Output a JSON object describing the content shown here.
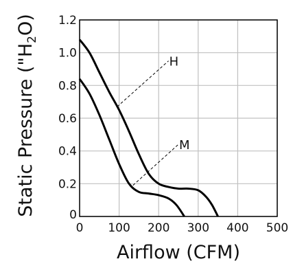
{
  "chart_data": {
    "type": "line",
    "title": "",
    "xlabel": "Airflow (CFM)",
    "ylabel_parts": [
      "Static Pressure (\"H",
      "2",
      "O)"
    ],
    "xlim": [
      0,
      500
    ],
    "ylim": [
      0,
      1.2
    ],
    "x_ticks": [
      0,
      100,
      200,
      300,
      400,
      500
    ],
    "x_tick_labels": [
      "0",
      "100",
      "200",
      "300",
      "400",
      "500"
    ],
    "y_ticks": [
      0,
      0.2,
      0.4,
      0.6,
      0.8,
      1.0,
      1.2
    ],
    "y_tick_labels": [
      "0",
      "0.2",
      "0.4",
      "0.6",
      "0.8",
      "1.0",
      "1.2"
    ],
    "grid": true,
    "legend": "none",
    "series": [
      {
        "name": "H",
        "points": [
          [
            0,
            1.08
          ],
          [
            25,
            1.0
          ],
          [
            50,
            0.88
          ],
          [
            75,
            0.76
          ],
          [
            100,
            0.65
          ],
          [
            125,
            0.52
          ],
          [
            150,
            0.38
          ],
          [
            175,
            0.26
          ],
          [
            200,
            0.2
          ],
          [
            225,
            0.18
          ],
          [
            250,
            0.17
          ],
          [
            275,
            0.17
          ],
          [
            300,
            0.16
          ],
          [
            320,
            0.12
          ],
          [
            335,
            0.07
          ],
          [
            350,
            0.0
          ]
        ]
      },
      {
        "name": "M",
        "points": [
          [
            0,
            0.84
          ],
          [
            25,
            0.75
          ],
          [
            50,
            0.62
          ],
          [
            75,
            0.47
          ],
          [
            100,
            0.32
          ],
          [
            125,
            0.2
          ],
          [
            150,
            0.15
          ],
          [
            175,
            0.14
          ],
          [
            200,
            0.13
          ],
          [
            225,
            0.11
          ],
          [
            245,
            0.07
          ],
          [
            265,
            0.0
          ]
        ]
      }
    ],
    "annotations": [
      {
        "text": "H",
        "x1": 95,
        "y1": 0.67,
        "x2": 225,
        "y2": 0.95
      },
      {
        "text": "M",
        "x1": 135,
        "y1": 0.19,
        "x2": 250,
        "y2": 0.44
      }
    ],
    "colors": {
      "curve": "#000000",
      "grid": "#c0c0c0",
      "axis": "#000000",
      "text": "#111111"
    }
  }
}
